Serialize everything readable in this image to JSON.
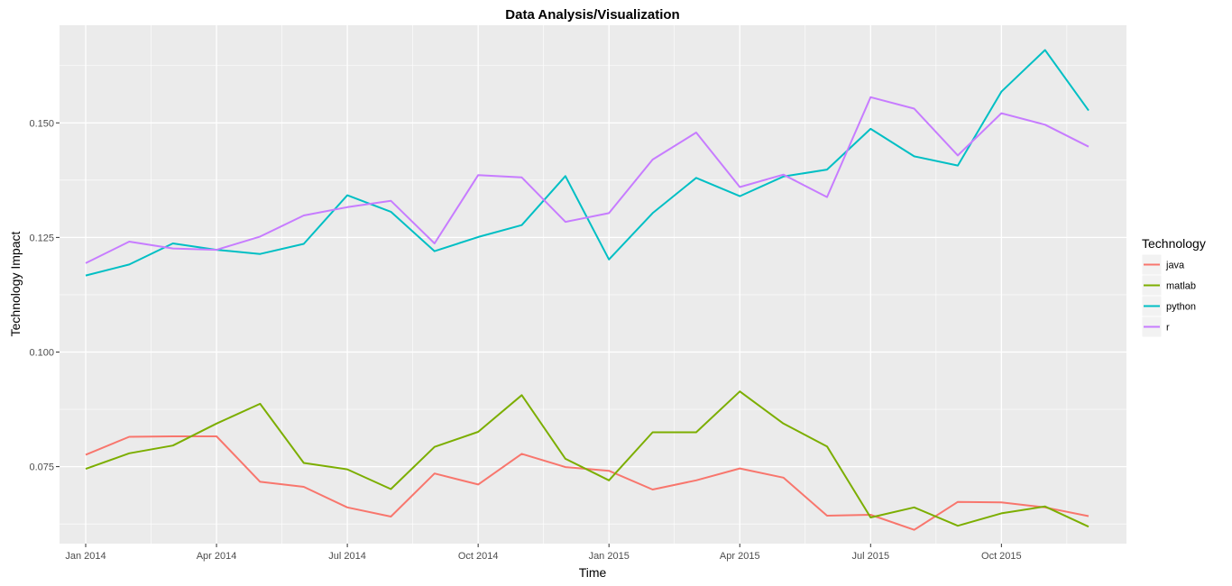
{
  "chart_data": {
    "type": "line",
    "title": "Data Analysis/Visualization",
    "xlabel": "Time",
    "ylabel": "Technology Impact",
    "legend_title": "Technology",
    "legend_position": "right",
    "grid": true,
    "background": "#ebebeb",
    "x": [
      "2014-01",
      "2014-02",
      "2014-03",
      "2014-04",
      "2014-05",
      "2014-06",
      "2014-07",
      "2014-08",
      "2014-09",
      "2014-10",
      "2014-11",
      "2014-12",
      "2015-01",
      "2015-02",
      "2015-03",
      "2015-04",
      "2015-05",
      "2015-06",
      "2015-07",
      "2015-08",
      "2015-09",
      "2015-10",
      "2015-11",
      "2015-12"
    ],
    "x_ticks": [
      {
        "value": "2014-01",
        "label": "Jan 2014"
      },
      {
        "value": "2014-04",
        "label": "Apr 2014"
      },
      {
        "value": "2014-07",
        "label": "Jul 2014"
      },
      {
        "value": "2014-10",
        "label": "Oct 2014"
      },
      {
        "value": "2015-01",
        "label": "Jan 2015"
      },
      {
        "value": "2015-04",
        "label": "Apr 2015"
      },
      {
        "value": "2015-07",
        "label": "Jul 2015"
      },
      {
        "value": "2015-10",
        "label": "Oct 2015"
      }
    ],
    "y_ticks": [
      {
        "value": 0.075,
        "label": "0.075"
      },
      {
        "value": 0.1,
        "label": "0.100"
      },
      {
        "value": 0.125,
        "label": "0.125"
      },
      {
        "value": 0.15,
        "label": "0.150"
      }
    ],
    "ylim": [
      0.0582,
      0.1713
    ],
    "series": [
      {
        "name": "java",
        "color": "#f8766d",
        "values": [
          0.0776,
          0.0815,
          0.0816,
          0.0816,
          0.0717,
          0.0706,
          0.0661,
          0.0641,
          0.0735,
          0.0711,
          0.0778,
          0.0749,
          0.0741,
          0.07,
          0.072,
          0.0746,
          0.0726,
          0.0643,
          0.0645,
          0.0612,
          0.0673,
          0.0672,
          0.0661,
          0.0642
        ]
      },
      {
        "name": "matlab",
        "color": "#7cae00",
        "values": [
          0.0745,
          0.0779,
          0.0796,
          0.0844,
          0.0887,
          0.0758,
          0.0744,
          0.0701,
          0.0793,
          0.0826,
          0.0906,
          0.0767,
          0.072,
          0.0825,
          0.0825,
          0.0914,
          0.0844,
          0.0794,
          0.0639,
          0.0661,
          0.0621,
          0.0648,
          0.0663,
          0.0619
        ]
      },
      {
        "name": "python",
        "color": "#00bfc4",
        "values": [
          0.1167,
          0.1191,
          0.1237,
          0.1223,
          0.1214,
          0.1236,
          0.1342,
          0.1306,
          0.122,
          0.1251,
          0.1277,
          0.1384,
          0.1202,
          0.1303,
          0.138,
          0.134,
          0.1383,
          0.1398,
          0.1487,
          0.1427,
          0.1407,
          0.1568,
          0.1659,
          0.1527
        ]
      },
      {
        "name": "r",
        "color": "#c77cff",
        "values": [
          0.1194,
          0.1241,
          0.1226,
          0.1223,
          0.1252,
          0.1298,
          0.1316,
          0.133,
          0.1237,
          0.1386,
          0.1381,
          0.1284,
          0.1303,
          0.142,
          0.1479,
          0.136,
          0.1387,
          0.1338,
          0.1556,
          0.1531,
          0.1429,
          0.1521,
          0.1496,
          0.1448
        ]
      }
    ]
  }
}
